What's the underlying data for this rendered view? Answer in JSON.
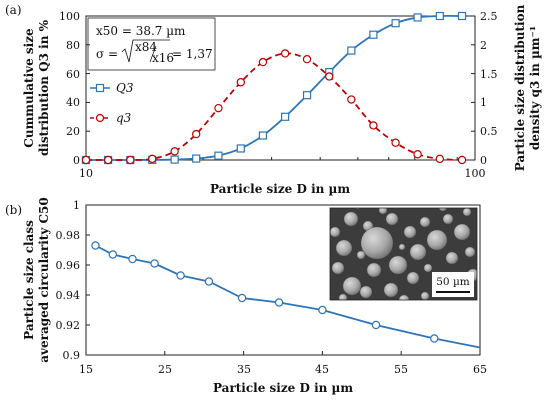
{
  "chart_data": [
    {
      "panel_label": "(a)",
      "type": "line",
      "x_scale": "log",
      "xlabel": "Particle size D in µm",
      "xlim": [
        10,
        100
      ],
      "x_ticks": [
        "10",
        "100"
      ],
      "ylabel_left_line1": "Cummulative size",
      "ylabel_left_line2": "distribution Q3 in %",
      "ylim_left": [
        0,
        100
      ],
      "y_ticks_left": [
        "0",
        "20",
        "40",
        "60",
        "80",
        "100"
      ],
      "ylabel_right_line1": "Particle size distribution",
      "ylabel_right_line2": "density q3 in µm⁻¹",
      "ylim_right": [
        0,
        2.5
      ],
      "y_ticks_right": [
        "0",
        "0.5",
        "1",
        "1.5",
        "2",
        "2.5"
      ],
      "grid": false,
      "annotation": {
        "x50": "x50 = 38.7 µm",
        "sigma_lhs": "σ =",
        "sigma_num": "x84",
        "sigma_den": "x16",
        "sigma_rhs": "= 1,37"
      },
      "legend": [
        "Q3",
        "q3"
      ],
      "legend_placement": "left",
      "series": [
        {
          "name": "Q3",
          "axis": "left",
          "color": "#2e75b6",
          "marker": "square",
          "style": "solid",
          "points": [
            [
              10,
              0
            ],
            [
              11.4,
              0
            ],
            [
              13,
              0
            ],
            [
              14.8,
              0.1
            ],
            [
              16.9,
              0.3
            ],
            [
              19.2,
              1
            ],
            [
              21.9,
              3
            ],
            [
              25,
              8
            ],
            [
              28.5,
              17
            ],
            [
              32.5,
              30
            ],
            [
              37,
              45
            ],
            [
              42.2,
              61
            ],
            [
              48.1,
              76
            ],
            [
              54.8,
              87
            ],
            [
              62.5,
              95
            ],
            [
              71.2,
              99
            ],
            [
              81.2,
              100
            ],
            [
              92.6,
              100
            ]
          ]
        },
        {
          "name": "q3",
          "axis": "right",
          "color": "#c00000",
          "marker": "circle",
          "style": "dashed",
          "points": [
            [
              10,
              0
            ],
            [
              11.4,
              0
            ],
            [
              13,
              0
            ],
            [
              14.8,
              0.02
            ],
            [
              16.9,
              0.15
            ],
            [
              19.2,
              0.45
            ],
            [
              21.9,
              0.9
            ],
            [
              25,
              1.35
            ],
            [
              28.5,
              1.7
            ],
            [
              32.5,
              1.85
            ],
            [
              37,
              1.75
            ],
            [
              42.2,
              1.45
            ],
            [
              48.1,
              1.05
            ],
            [
              54.8,
              0.6
            ],
            [
              62.5,
              0.3
            ],
            [
              71.2,
              0.1
            ],
            [
              81.2,
              0.02
            ],
            [
              92.6,
              0
            ]
          ]
        }
      ]
    },
    {
      "panel_label": "(b)",
      "type": "line",
      "xlabel": "Particle size D in µm",
      "xlim": [
        15,
        65
      ],
      "x_ticks": [
        "15",
        "25",
        "35",
        "45",
        "55",
        "65"
      ],
      "ylabel_line1": "Particle size class",
      "ylabel_line2": "averaged circularity C50",
      "ylim": [
        0.9,
        1
      ],
      "y_ticks": [
        "0.9",
        "0.92",
        "0.94",
        "0.96",
        "0.98",
        "1"
      ],
      "grid": false,
      "series": [
        {
          "color": "#2e75b6",
          "marker": "circle",
          "points": [
            [
              16.2,
              0.973
            ],
            [
              18.4,
              0.967
            ],
            [
              20.9,
              0.964
            ],
            [
              23.7,
              0.961
            ],
            [
              27,
              0.953
            ],
            [
              30.6,
              0.949
            ],
            [
              34.8,
              0.938
            ],
            [
              39.5,
              0.935
            ],
            [
              45,
              0.93
            ],
            [
              51.8,
              0.92
            ],
            [
              59.2,
              0.911
            ],
            [
              65,
              0.905
            ]
          ]
        }
      ],
      "inset": {
        "scale_bar_label": "50 µm"
      }
    }
  ]
}
